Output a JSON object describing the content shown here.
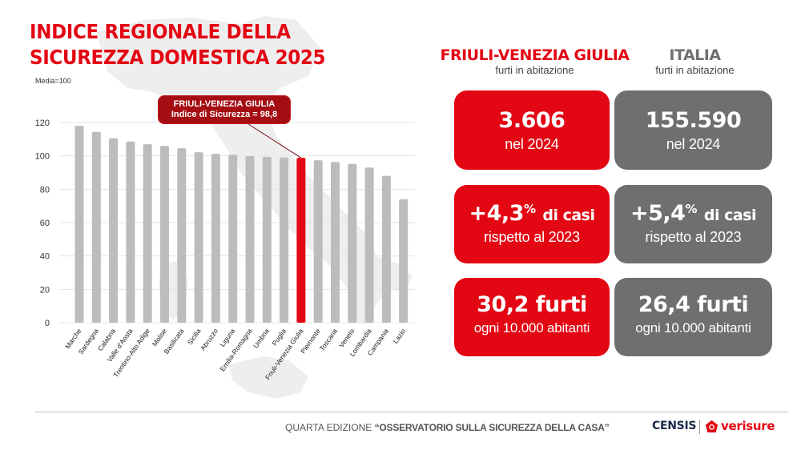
{
  "header": {
    "title_line1": "INDICE REGIONALE DELLA",
    "title_line2": "SICUREZZA DOMESTICA 2025",
    "note": "Media=100"
  },
  "callout": {
    "line1": "FRIULI-VENEZIA GIULIA",
    "line2": "Indice di Sicurezza = 98,8"
  },
  "colors": {
    "brand_red": "#e30613",
    "dark_red": "#a50d12",
    "bar_grey": "#bcbcbc",
    "card_grey": "#6f6f6f"
  },
  "chart_data": {
    "type": "bar",
    "title": "Indice regionale della sicurezza domestica 2025",
    "ylabel": "Media=100",
    "xlabel": "",
    "ylim": [
      0,
      120
    ],
    "yticks": [
      0,
      20,
      40,
      60,
      80,
      100,
      120
    ],
    "grid": true,
    "highlight": "Friuli-Venezia Giulia",
    "categories": [
      "Marche",
      "Sardegna",
      "Calabria",
      "Valle d'Aosta",
      "Trentino-Alto Adige",
      "Molise",
      "Basilicata",
      "Sicilia",
      "Abruzzo",
      "Liguria",
      "Emilia-Romagna",
      "Umbria",
      "Puglia",
      "Friuli-Venezia Giulia",
      "Piemonte",
      "Toscana",
      "Veneto",
      "Lombardia",
      "Campania",
      "Lazio"
    ],
    "values": [
      118.0,
      114.4,
      110.6,
      108.6,
      107.0,
      106.0,
      104.6,
      102.2,
      101.2,
      100.6,
      99.9,
      99.4,
      99.0,
      98.8,
      97.4,
      96.3,
      95.2,
      93.0,
      88.0,
      74.0
    ]
  },
  "comparison": {
    "left": {
      "name": "FRIULI-VENEZIA GIULIA",
      "subtitle": "furti in abitazione",
      "cards": [
        {
          "value": "3.606",
          "sub": "nel 2024"
        },
        {
          "value": "+4,3",
          "sup": "%",
          "unit": "di casi",
          "sub": "rispetto al 2023"
        },
        {
          "value": "30,2 furti",
          "sub": "ogni 10.000 abitanti"
        }
      ]
    },
    "right": {
      "name": "ITALIA",
      "subtitle": "furti in abitazione",
      "cards": [
        {
          "value": "155.590",
          "sub": "nel 2024"
        },
        {
          "value": "+5,4",
          "sup": "%",
          "unit": "di casi",
          "sub": "rispetto al 2023"
        },
        {
          "value": "26,4 furti",
          "sub": "ogni 10.000 abitanti"
        }
      ]
    }
  },
  "footer": {
    "edition": "QUARTA EDIZIONE ",
    "observatory": "“OSSERVATORIO SULLA SICUREZZA DELLA CASA”",
    "logo_censis": "CENSIS",
    "logo_verisure": "verisure"
  }
}
